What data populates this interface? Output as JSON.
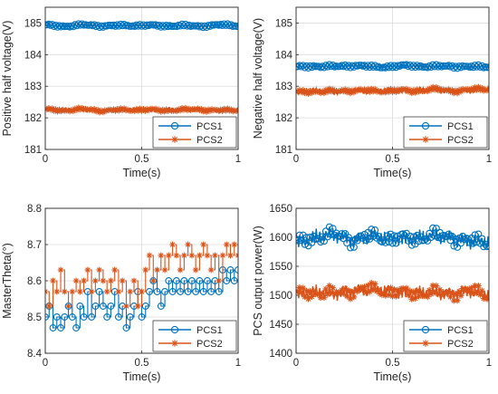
{
  "chart_data": [
    {
      "type": "line",
      "xlabel": "Time(s)",
      "ylabel": "Positive half voltage(V)",
      "xlim": [
        0,
        1
      ],
      "ylim": [
        181,
        185.5
      ],
      "xticks": [
        "0",
        "0.5",
        "1"
      ],
      "yticks": [
        "181",
        "182",
        "183",
        "184",
        "185"
      ],
      "grid": true,
      "legend": "bottom-right",
      "series": [
        {
          "name": "PCS1",
          "marker": "circle",
          "color": "#0072BD",
          "level": 184.92,
          "ripple": 0.04,
          "x": [
            0,
            0.1,
            0.2,
            0.3,
            0.4,
            0.5,
            0.6,
            0.7,
            0.8,
            0.9,
            1
          ],
          "y": [
            184.93,
            184.9,
            184.94,
            184.91,
            184.92,
            184.93,
            184.91,
            184.92,
            184.9,
            184.94,
            184.92
          ]
        },
        {
          "name": "PCS2",
          "marker": "star",
          "color": "#D95319",
          "level": 182.25,
          "ripple": 0.05,
          "x": [
            0,
            0.1,
            0.2,
            0.3,
            0.4,
            0.5,
            0.6,
            0.7,
            0.8,
            0.9,
            1
          ],
          "y": [
            182.26,
            182.24,
            182.27,
            182.23,
            182.25,
            182.26,
            182.24,
            182.25,
            182.27,
            182.23,
            182.25
          ]
        }
      ]
    },
    {
      "type": "line",
      "xlabel": "Time(s)",
      "ylabel": "Negative half voltage(V)",
      "xlim": [
        0,
        1
      ],
      "ylim": [
        181,
        185.5
      ],
      "xticks": [
        "0",
        "0.5",
        "1"
      ],
      "yticks": [
        "181",
        "182",
        "183",
        "184",
        "185"
      ],
      "grid": true,
      "legend": "bottom-right",
      "series": [
        {
          "name": "PCS1",
          "marker": "circle",
          "color": "#0072BD",
          "level": 183.63,
          "ripple": 0.05,
          "x": [
            0,
            0.1,
            0.2,
            0.3,
            0.4,
            0.5,
            0.6,
            0.7,
            0.8,
            0.9,
            1
          ],
          "y": [
            183.6,
            183.64,
            183.62,
            183.66,
            183.61,
            183.63,
            183.65,
            183.62,
            183.64,
            183.61,
            183.63
          ]
        },
        {
          "name": "PCS2",
          "marker": "star",
          "color": "#D95319",
          "level": 182.85,
          "ripple": 0.07,
          "x": [
            0,
            0.1,
            0.2,
            0.3,
            0.4,
            0.5,
            0.6,
            0.7,
            0.8,
            0.9,
            1
          ],
          "y": [
            182.8,
            182.85,
            182.83,
            182.88,
            182.84,
            182.87,
            182.85,
            182.9,
            182.86,
            182.88,
            182.92
          ]
        }
      ]
    },
    {
      "type": "line",
      "xlabel": "Time(s)",
      "ylabel": "MasterTheta(°)",
      "xlim": [
        0,
        1
      ],
      "ylim": [
        8.4,
        8.8
      ],
      "xticks": [
        "0",
        "0.5",
        "1"
      ],
      "yticks": [
        "8.4",
        "8.5",
        "8.6",
        "8.7",
        "8.8"
      ],
      "grid": true,
      "legend": "bottom-right",
      "series": [
        {
          "name": "PCS1",
          "marker": "circle",
          "color": "#0072BD",
          "steps": true,
          "x": [
            0,
            0.02,
            0.04,
            0.06,
            0.08,
            0.1,
            0.12,
            0.14,
            0.16,
            0.18,
            0.2,
            0.22,
            0.24,
            0.26,
            0.28,
            0.3,
            0.32,
            0.34,
            0.36,
            0.38,
            0.4,
            0.42,
            0.44,
            0.46,
            0.48,
            0.5,
            0.52,
            0.54,
            0.56,
            0.58,
            0.6,
            0.62,
            0.64,
            0.66,
            0.68,
            0.7,
            0.72,
            0.74,
            0.76,
            0.78,
            0.8,
            0.82,
            0.84,
            0.86,
            0.88,
            0.9,
            0.92,
            0.94,
            0.96,
            0.98,
            1.0
          ],
          "y": [
            8.5,
            8.53,
            8.47,
            8.5,
            8.47,
            8.5,
            8.53,
            8.5,
            8.47,
            8.53,
            8.5,
            8.57,
            8.5,
            8.53,
            8.57,
            8.53,
            8.5,
            8.53,
            8.57,
            8.5,
            8.53,
            8.47,
            8.5,
            8.53,
            8.57,
            8.5,
            8.53,
            8.57,
            8.6,
            8.57,
            8.53,
            8.57,
            8.6,
            8.57,
            8.6,
            8.57,
            8.6,
            8.57,
            8.6,
            8.57,
            8.6,
            8.57,
            8.6,
            8.57,
            8.6,
            8.57,
            8.63,
            8.6,
            8.63,
            8.6,
            8.63
          ]
        },
        {
          "name": "PCS2",
          "marker": "star",
          "color": "#D95319",
          "steps": true,
          "x": [
            0,
            0.02,
            0.04,
            0.06,
            0.08,
            0.1,
            0.12,
            0.14,
            0.16,
            0.18,
            0.2,
            0.22,
            0.24,
            0.26,
            0.28,
            0.3,
            0.32,
            0.34,
            0.36,
            0.38,
            0.4,
            0.42,
            0.44,
            0.46,
            0.48,
            0.5,
            0.52,
            0.54,
            0.56,
            0.58,
            0.6,
            0.62,
            0.64,
            0.66,
            0.68,
            0.7,
            0.72,
            0.74,
            0.76,
            0.78,
            0.8,
            0.82,
            0.84,
            0.86,
            0.88,
            0.9,
            0.92,
            0.94,
            0.96,
            0.98,
            1.0
          ],
          "y": [
            8.57,
            8.53,
            8.6,
            8.57,
            8.63,
            8.57,
            8.53,
            8.57,
            8.6,
            8.57,
            8.6,
            8.63,
            8.57,
            8.6,
            8.63,
            8.6,
            8.57,
            8.6,
            8.63,
            8.57,
            8.6,
            8.53,
            8.57,
            8.6,
            8.53,
            8.57,
            8.63,
            8.67,
            8.6,
            8.63,
            8.67,
            8.63,
            8.67,
            8.7,
            8.67,
            8.63,
            8.67,
            8.7,
            8.67,
            8.63,
            8.67,
            8.7,
            8.67,
            8.63,
            8.67,
            8.6,
            8.67,
            8.7,
            8.67,
            8.7,
            8.67
          ]
        }
      ]
    },
    {
      "type": "line",
      "xlabel": "Time(s)",
      "ylabel": "PCS output power(W)",
      "xlim": [
        0,
        1
      ],
      "ylim": [
        1400,
        1650
      ],
      "xticks": [
        "0",
        "0.5",
        "1"
      ],
      "yticks": [
        "1400",
        "1450",
        "1500",
        "1550",
        "1600",
        "1650"
      ],
      "grid": true,
      "legend": "bottom-right",
      "series": [
        {
          "name": "PCS1",
          "marker": "circle",
          "color": "#0072BD",
          "level": 1598,
          "ripple": 12,
          "x": [
            0,
            0.1,
            0.2,
            0.3,
            0.4,
            0.5,
            0.6,
            0.7,
            0.8,
            0.9,
            1
          ],
          "y": [
            1590,
            1600,
            1605,
            1595,
            1602,
            1598,
            1597,
            1603,
            1600,
            1593,
            1592
          ]
        },
        {
          "name": "PCS2",
          "marker": "star",
          "color": "#D95319",
          "level": 1505,
          "ripple": 11,
          "x": [
            0,
            0.1,
            0.2,
            0.3,
            0.4,
            0.5,
            0.6,
            0.7,
            0.8,
            0.9,
            1
          ],
          "y": [
            1502,
            1505,
            1503,
            1508,
            1510,
            1506,
            1503,
            1505,
            1502,
            1508,
            1500
          ]
        }
      ]
    }
  ]
}
